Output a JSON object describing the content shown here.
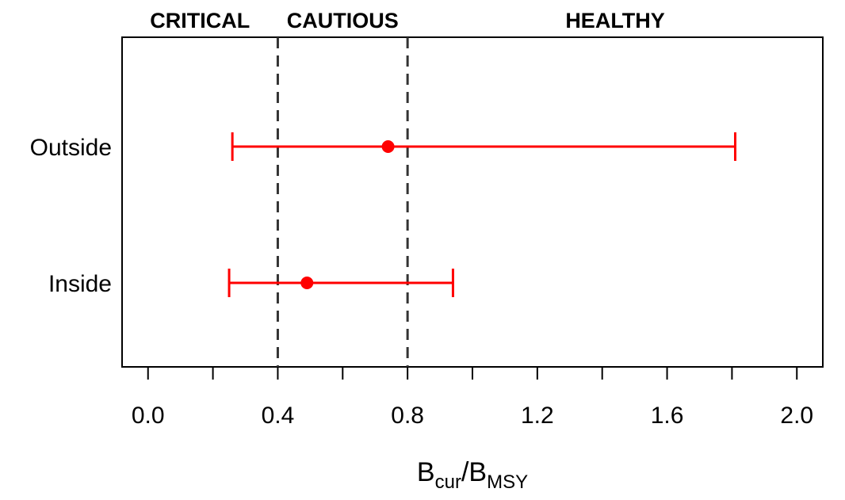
{
  "chart_data": {
    "type": "errorbar",
    "xlabel": {
      "main": "B",
      "sub1": "cur",
      "slash": "/",
      "main2": "B",
      "sub2": "MSY"
    },
    "xlim": [
      -0.08,
      2.08
    ],
    "x_ticks": [
      0.0,
      0.2,
      0.4,
      0.6,
      0.8,
      1.0,
      1.2,
      1.4,
      1.6,
      1.8,
      2.0
    ],
    "x_tick_labels": [
      {
        "value": 0.0,
        "label": "0.0"
      },
      {
        "value": 0.4,
        "label": "0.4"
      },
      {
        "value": 0.8,
        "label": "0.8"
      },
      {
        "value": 1.2,
        "label": "1.2"
      },
      {
        "value": 1.6,
        "label": "1.6"
      },
      {
        "value": 2.0,
        "label": "2.0"
      }
    ],
    "categories": [
      "Outside",
      "Inside"
    ],
    "points": [
      {
        "category": "Outside",
        "value": 0.74,
        "lower": 0.26,
        "upper": 1.81
      },
      {
        "category": "Inside",
        "value": 0.49,
        "lower": 0.25,
        "upper": 0.94
      }
    ],
    "reference_lines": [
      0.4,
      0.8
    ],
    "zones": [
      {
        "label": "CRITICAL",
        "from": -0.08,
        "to": 0.4
      },
      {
        "label": "CAUTIOUS",
        "from": 0.4,
        "to": 0.8
      },
      {
        "label": "HEALTHY",
        "from": 0.8,
        "to": 2.08
      }
    ],
    "colors": {
      "point": "#ff0000",
      "reference_line": "#333333",
      "axis": "#000000"
    },
    "grid": false
  }
}
